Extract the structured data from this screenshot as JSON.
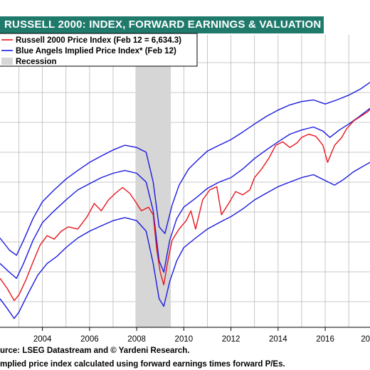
{
  "title": "RUSSELL 2000: INDEX, FORWARD EARNINGS & VALUATION",
  "colors": {
    "banner": "#1f7a6c",
    "price_series": "#e8141c",
    "blue_series": "#1a1ae0",
    "recession": "#d6d6d6",
    "grid": "#b8b8b8"
  },
  "legend": [
    {
      "label": "Russell 2000 Price Index (Feb 12 = 6,634.3)",
      "type": "line",
      "color": "#e8141c"
    },
    {
      "label": "Blue Angels Implied Price Index* (Feb 12)",
      "type": "line",
      "color": "#1a1ae0"
    },
    {
      "label": "Recession",
      "type": "box",
      "color": "#d6d6d6"
    }
  ],
  "footer": {
    "source": "urce: LSEG Datastream and © Yardeni Research.",
    "note": "mplied price index calculated using forward earnings times forward P/Es."
  },
  "chart_data": {
    "type": "line",
    "x_ticks": [
      "2004",
      "2006",
      "2008",
      "2010",
      "2012",
      "2014",
      "2016",
      "20"
    ],
    "xlim": [
      2002.2,
      2017.9
    ],
    "y_scale": "log",
    "ylim": [
      290,
      2650
    ],
    "recession": [
      2007.95,
      2009.45
    ],
    "series": [
      {
        "name": "Russell 2000 Price Index (Feb 12 = 6,634.3)",
        "color": "#e8141c",
        "points": [
          [
            2002.2,
            420
          ],
          [
            2002.5,
            390
          ],
          [
            2002.8,
            355
          ],
          [
            2003.0,
            370
          ],
          [
            2003.3,
            415
          ],
          [
            2003.6,
            475
          ],
          [
            2003.9,
            540
          ],
          [
            2004.2,
            580
          ],
          [
            2004.5,
            565
          ],
          [
            2004.8,
            600
          ],
          [
            2005.1,
            620
          ],
          [
            2005.5,
            610
          ],
          [
            2005.9,
            670
          ],
          [
            2006.2,
            740
          ],
          [
            2006.5,
            700
          ],
          [
            2006.8,
            760
          ],
          [
            2007.1,
            800
          ],
          [
            2007.4,
            835
          ],
          [
            2007.7,
            800
          ],
          [
            2007.9,
            760
          ],
          [
            2008.2,
            700
          ],
          [
            2008.5,
            720
          ],
          [
            2008.7,
            680
          ],
          [
            2008.85,
            520
          ],
          [
            2009.0,
            440
          ],
          [
            2009.15,
            400
          ],
          [
            2009.3,
            470
          ],
          [
            2009.5,
            560
          ],
          [
            2009.8,
            610
          ],
          [
            2010.1,
            650
          ],
          [
            2010.3,
            700
          ],
          [
            2010.5,
            610
          ],
          [
            2010.8,
            760
          ],
          [
            2011.1,
            820
          ],
          [
            2011.4,
            840
          ],
          [
            2011.6,
            680
          ],
          [
            2011.9,
            740
          ],
          [
            2012.2,
            810
          ],
          [
            2012.5,
            790
          ],
          [
            2012.8,
            820
          ],
          [
            2013.0,
            900
          ],
          [
            2013.3,
            960
          ],
          [
            2013.6,
            1040
          ],
          [
            2013.9,
            1150
          ],
          [
            2014.2,
            1180
          ],
          [
            2014.5,
            1130
          ],
          [
            2014.8,
            1170
          ],
          [
            2015.0,
            1220
          ],
          [
            2015.3,
            1250
          ],
          [
            2015.6,
            1230
          ],
          [
            2015.9,
            1150
          ],
          [
            2016.1,
            1010
          ],
          [
            2016.4,
            1150
          ],
          [
            2016.7,
            1220
          ],
          [
            2016.9,
            1300
          ],
          [
            2017.2,
            1380
          ],
          [
            2017.5,
            1430
          ],
          [
            2017.8,
            1480
          ],
          [
            2017.9,
            1510
          ]
        ]
      },
      {
        "name": "Blue Angels Implied Price Index* (Feb 12)",
        "color": "#1a1ae0",
        "points": [
          [
            2002.2,
            470
          ],
          [
            2002.6,
            440
          ],
          [
            2002.9,
            420
          ],
          [
            2003.2,
            470
          ],
          [
            2003.6,
            560
          ],
          [
            2004.0,
            640
          ],
          [
            2004.5,
            700
          ],
          [
            2005.0,
            760
          ],
          [
            2005.5,
            820
          ],
          [
            2006.0,
            860
          ],
          [
            2006.5,
            900
          ],
          [
            2007.0,
            930
          ],
          [
            2007.5,
            950
          ],
          [
            2008.0,
            930
          ],
          [
            2008.4,
            870
          ],
          [
            2008.7,
            700
          ],
          [
            2008.95,
            480
          ],
          [
            2009.15,
            440
          ],
          [
            2009.4,
            560
          ],
          [
            2009.7,
            660
          ],
          [
            2010.0,
            720
          ],
          [
            2010.5,
            770
          ],
          [
            2011.0,
            830
          ],
          [
            2011.5,
            870
          ],
          [
            2012.0,
            900
          ],
          [
            2012.5,
            960
          ],
          [
            2013.0,
            1040
          ],
          [
            2013.5,
            1110
          ],
          [
            2014.0,
            1180
          ],
          [
            2014.5,
            1250
          ],
          [
            2015.0,
            1290
          ],
          [
            2015.5,
            1320
          ],
          [
            2015.9,
            1280
          ],
          [
            2016.2,
            1220
          ],
          [
            2016.6,
            1290
          ],
          [
            2017.0,
            1350
          ],
          [
            2017.4,
            1420
          ],
          [
            2017.9,
            1520
          ]
        ]
      },
      {
        "name": "upper band",
        "color": "#1a1ae0",
        "points": [
          [
            2002.2,
            570
          ],
          [
            2002.6,
            520
          ],
          [
            2002.9,
            500
          ],
          [
            2003.2,
            560
          ],
          [
            2003.6,
            660
          ],
          [
            2004.0,
            750
          ],
          [
            2004.5,
            820
          ],
          [
            2005.0,
            890
          ],
          [
            2005.5,
            950
          ],
          [
            2006.0,
            1010
          ],
          [
            2006.5,
            1060
          ],
          [
            2007.0,
            1110
          ],
          [
            2007.5,
            1150
          ],
          [
            2008.0,
            1130
          ],
          [
            2008.4,
            1090
          ],
          [
            2008.7,
            870
          ],
          [
            2008.95,
            620
          ],
          [
            2009.2,
            590
          ],
          [
            2009.5,
            730
          ],
          [
            2009.8,
            850
          ],
          [
            2010.2,
            960
          ],
          [
            2010.6,
            1030
          ],
          [
            2011.0,
            1100
          ],
          [
            2011.5,
            1150
          ],
          [
            2012.0,
            1200
          ],
          [
            2012.5,
            1270
          ],
          [
            2013.0,
            1350
          ],
          [
            2013.5,
            1430
          ],
          [
            2014.0,
            1500
          ],
          [
            2014.5,
            1560
          ],
          [
            2015.0,
            1600
          ],
          [
            2015.5,
            1620
          ],
          [
            2016.0,
            1570
          ],
          [
            2016.5,
            1620
          ],
          [
            2017.0,
            1680
          ],
          [
            2017.5,
            1760
          ],
          [
            2017.9,
            1850
          ]
        ]
      },
      {
        "name": "lower band",
        "color": "#1a1ae0",
        "points": [
          [
            2002.2,
            360
          ],
          [
            2002.5,
            335
          ],
          [
            2002.8,
            310
          ],
          [
            2003.0,
            325
          ],
          [
            2003.4,
            375
          ],
          [
            2003.8,
            430
          ],
          [
            2004.2,
            470
          ],
          [
            2004.6,
            495
          ],
          [
            2005.0,
            530
          ],
          [
            2005.5,
            570
          ],
          [
            2006.0,
            600
          ],
          [
            2006.5,
            625
          ],
          [
            2007.0,
            650
          ],
          [
            2007.5,
            665
          ],
          [
            2008.0,
            650
          ],
          [
            2008.4,
            600
          ],
          [
            2008.7,
            470
          ],
          [
            2008.95,
            360
          ],
          [
            2009.15,
            340
          ],
          [
            2009.4,
            410
          ],
          [
            2009.7,
            480
          ],
          [
            2010.0,
            530
          ],
          [
            2010.5,
            570
          ],
          [
            2011.0,
            610
          ],
          [
            2011.5,
            640
          ],
          [
            2012.0,
            670
          ],
          [
            2012.5,
            710
          ],
          [
            2013.0,
            760
          ],
          [
            2013.5,
            800
          ],
          [
            2014.0,
            840
          ],
          [
            2014.5,
            870
          ],
          [
            2015.0,
            900
          ],
          [
            2015.5,
            920
          ],
          [
            2016.0,
            880
          ],
          [
            2016.4,
            850
          ],
          [
            2016.8,
            890
          ],
          [
            2017.2,
            940
          ],
          [
            2017.6,
            980
          ],
          [
            2017.9,
            1010
          ]
        ]
      }
    ]
  }
}
